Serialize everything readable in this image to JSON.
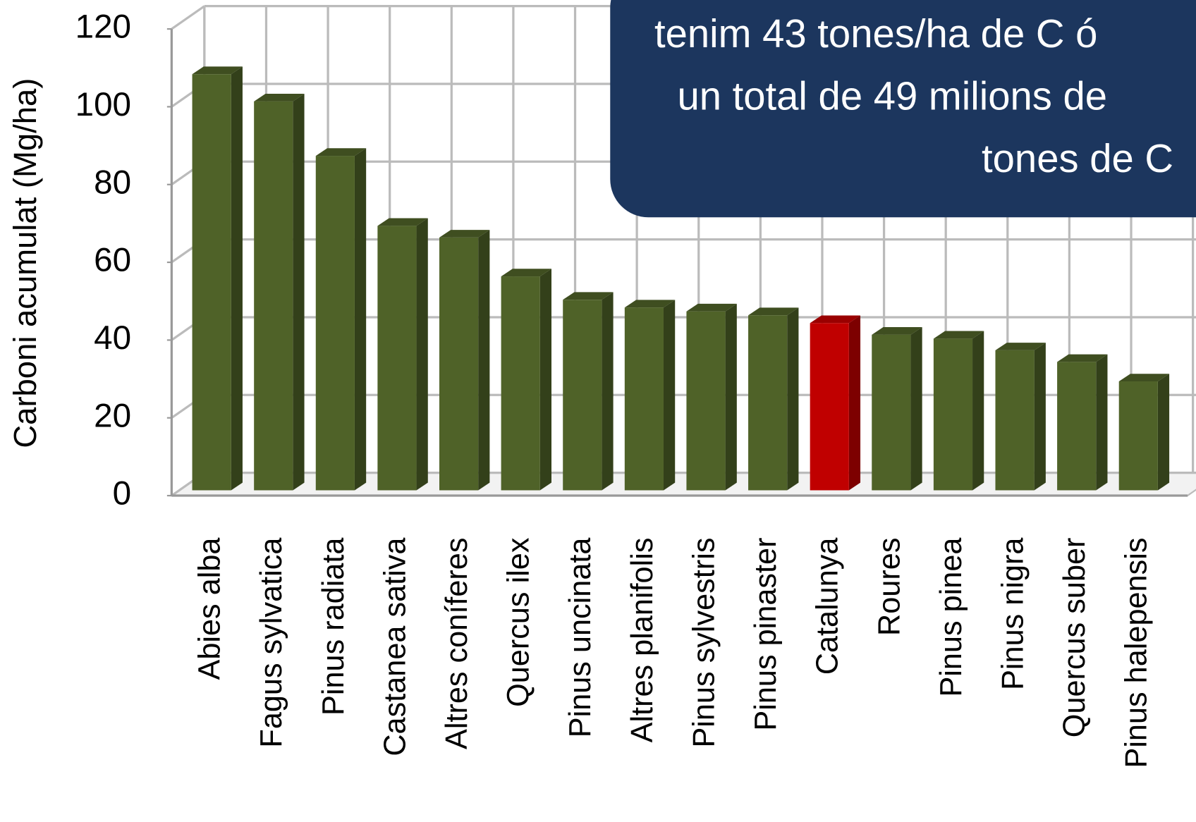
{
  "chart_data": {
    "type": "bar",
    "ylabel": "Carboni acumulat (Mg/ha)",
    "categories": [
      "Abies alba",
      "Fagus sylvatica",
      "Pinus radiata",
      "Castanea sativa",
      "Altres coníferes",
      "Quercus ilex",
      "Pinus uncinata",
      "Altres planifolis",
      "Pinus sylvestris",
      "Pinus pinaster",
      "Catalunya",
      "Roures",
      "Pinus pinea",
      "Pinus nigra",
      "Quercus suber",
      "Pinus halepensis"
    ],
    "values": [
      107,
      100,
      86,
      68,
      65,
      55,
      49,
      47,
      46,
      45,
      43,
      40,
      39,
      36,
      33,
      28
    ],
    "colors": [
      "#4f6228",
      "#4f6228",
      "#4f6228",
      "#4f6228",
      "#4f6228",
      "#4f6228",
      "#4f6228",
      "#4f6228",
      "#4f6228",
      "#4f6228",
      "#c00000",
      "#4f6228",
      "#4f6228",
      "#4f6228",
      "#4f6228",
      "#4f6228"
    ],
    "ylim": [
      0,
      120
    ],
    "yticks": [
      0,
      20,
      40,
      60,
      80,
      100,
      120
    ],
    "grid": true,
    "annotation": [
      "tenim  43 tones/ha de C ó",
      "un total de 49 milions de",
      "tones de C"
    ]
  }
}
